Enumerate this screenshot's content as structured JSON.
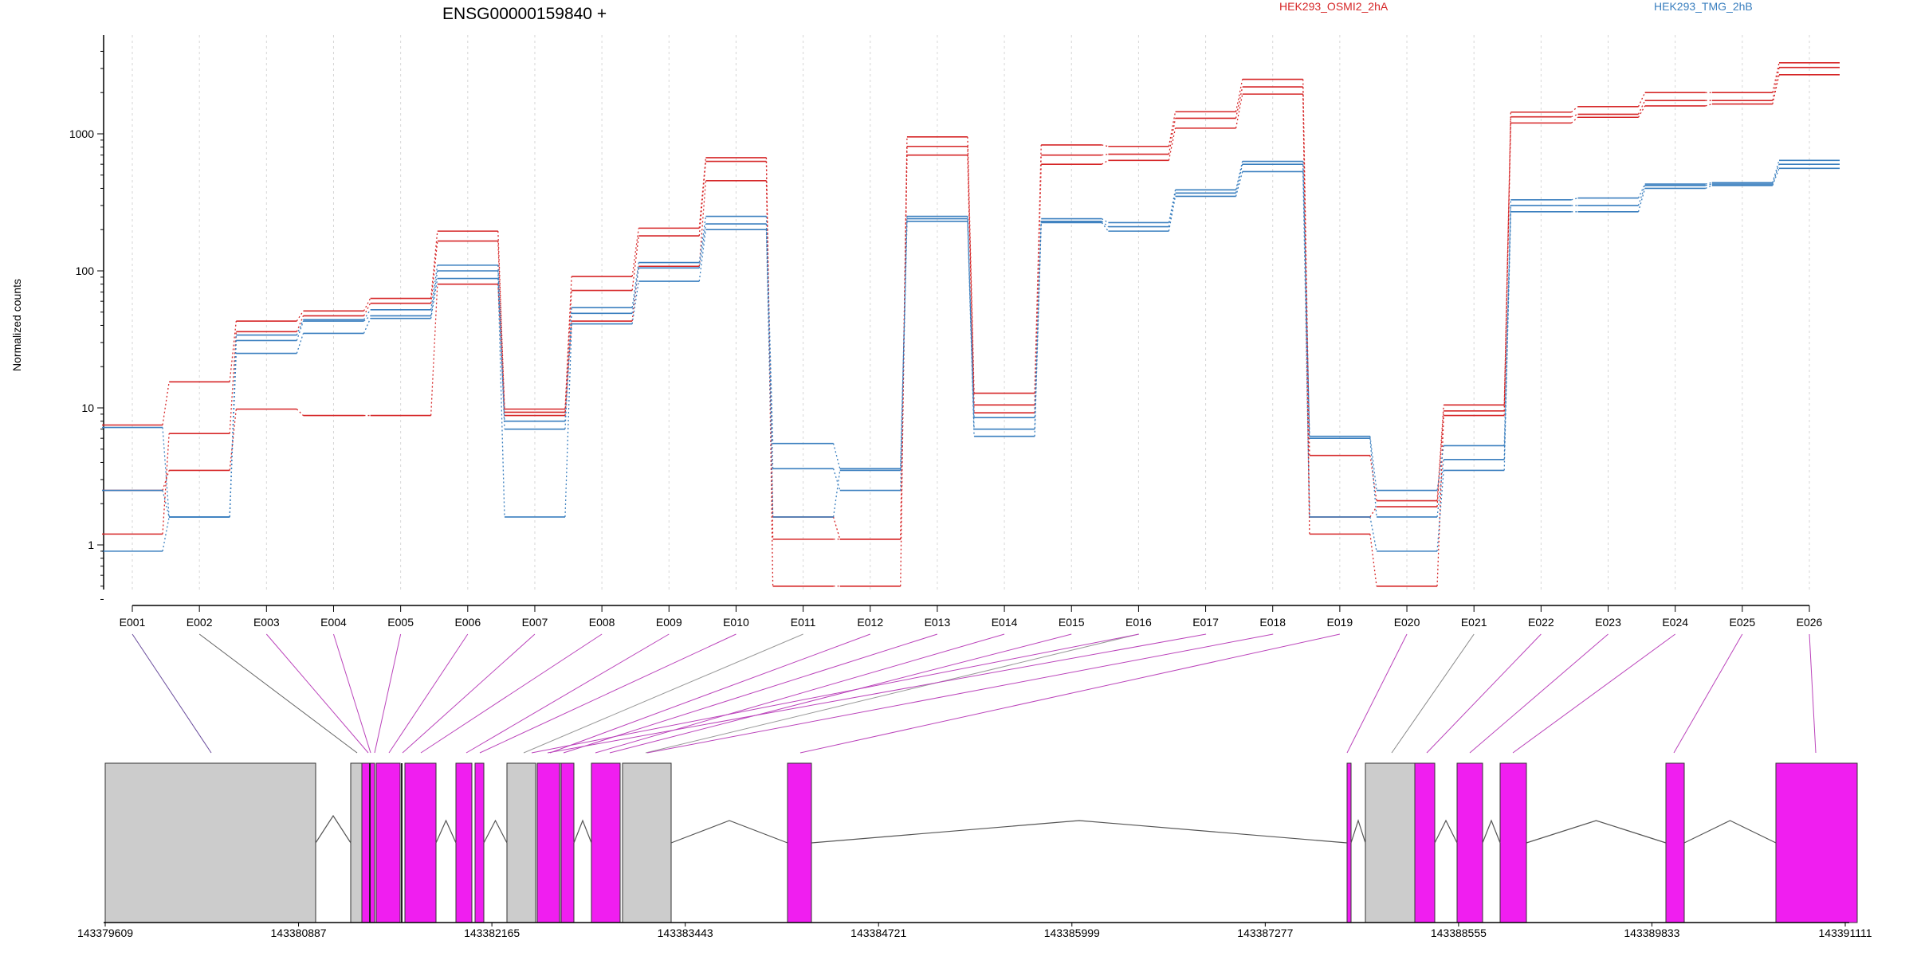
{
  "chart_data": {
    "type": "line",
    "title": "ENSG00000159840 +",
    "ylabel": "Normalized counts",
    "yscale": "log",
    "ylim": [
      0.4,
      4000
    ],
    "yticks": [
      "1",
      "10",
      "100",
      "1000"
    ],
    "grid": "vertical-dotted",
    "categories": [
      "E001",
      "E002",
      "E003",
      "E004",
      "E005",
      "E006",
      "E007",
      "E008",
      "E009",
      "E010",
      "E011",
      "E012",
      "E013",
      "E014",
      "E015",
      "E016",
      "E017",
      "E018",
      "E019",
      "E020",
      "E021",
      "E022",
      "E023",
      "E024",
      "E025",
      "E026"
    ],
    "legend": [
      {
        "name": "HEK293_OSMI2_2hA",
        "color": "#d62728"
      },
      {
        "name": "HEK293_TMG_2hB",
        "color": "#3a7fbf"
      }
    ],
    "series": [
      {
        "group": "HEK293_OSMI2_2hA",
        "color": "#d62728",
        "values": [
          7.5,
          15.5,
          43,
          51,
          63,
          195,
          9.8,
          91,
          205,
          670,
          0.5,
          0.5,
          950,
          12.8,
          830,
          810,
          1450,
          2500,
          4.5,
          2.1,
          10.5,
          1440,
          1580,
          2000,
          2000,
          3300
        ]
      },
      {
        "group": "HEK293_OSMI2_2hA",
        "color": "#d62728",
        "values": [
          1.2,
          6.5,
          36,
          47,
          58,
          165,
          9.3,
          72,
          180,
          630,
          1.1,
          1.1,
          810,
          10.5,
          700,
          710,
          1300,
          2200,
          1.6,
          1.9,
          9.5,
          1330,
          1390,
          1750,
          1750,
          3050
        ]
      },
      {
        "group": "HEK293_OSMI2_2hA",
        "color": "#d62728",
        "values": [
          2.5,
          3.5,
          9.8,
          8.8,
          8.8,
          80,
          8.8,
          43,
          108,
          455,
          1.6,
          1.1,
          700,
          9.2,
          600,
          640,
          1100,
          1950,
          1.2,
          0.5,
          8.8,
          1200,
          1320,
          1600,
          1650,
          2700
        ]
      },
      {
        "group": "HEK293_TMG_2hB",
        "color": "#3a7fbf",
        "values": [
          7.2,
          1.6,
          34,
          44,
          52,
          110,
          7.0,
          54,
          115,
          250,
          5.5,
          3.6,
          250,
          8.5,
          240,
          225,
          390,
          630,
          6.2,
          2.5,
          5.3,
          330,
          340,
          430,
          440,
          640
        ]
      },
      {
        "group": "HEK293_TMG_2hB",
        "color": "#3a7fbf",
        "values": [
          2.5,
          1.6,
          31,
          43,
          47,
          100,
          8.0,
          49,
          105,
          220,
          3.6,
          2.5,
          240,
          7.0,
          230,
          210,
          370,
          600,
          6.0,
          1.6,
          4.2,
          300,
          300,
          420,
          430,
          600
        ]
      },
      {
        "group": "HEK293_TMG_2hB",
        "color": "#3a7fbf",
        "values": [
          0.9,
          1.6,
          25,
          35,
          45,
          88,
          1.6,
          41,
          84,
          200,
          1.6,
          3.5,
          230,
          6.2,
          225,
          195,
          350,
          530,
          1.6,
          0.9,
          3.5,
          270,
          270,
          400,
          420,
          560
        ]
      }
    ],
    "genomic_axis": {
      "labels": [
        "143379609",
        "143380887",
        "143382165",
        "143383443",
        "143384721",
        "143385999",
        "143387277",
        "143388555",
        "143389833",
        "143391111"
      ],
      "range": [
        143379609,
        143391111
      ]
    }
  }
}
